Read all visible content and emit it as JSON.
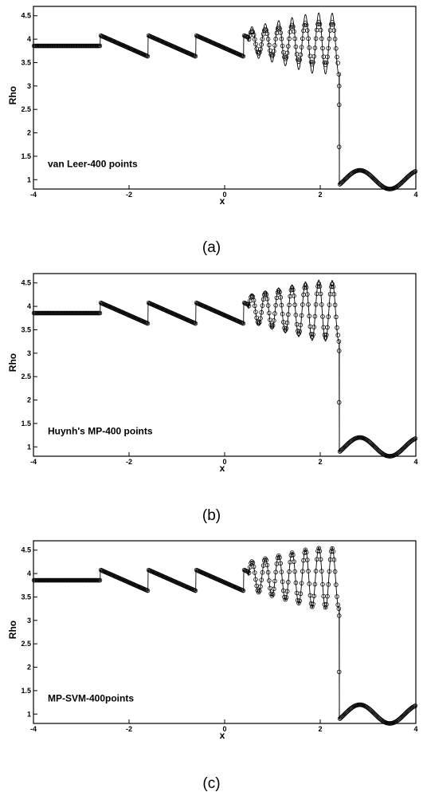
{
  "chart_data": [
    {
      "type": "line",
      "caption": "(a)",
      "annotation": "van Leer-400 points",
      "xlabel": "x",
      "ylabel": "Rho",
      "xlim": [
        -4,
        4
      ],
      "ylim": [
        0.8,
        4.7
      ],
      "x_ticks": [
        -4,
        -2,
        0,
        2,
        4
      ],
      "y_ticks": [
        1,
        1.5,
        2,
        2.5,
        3,
        3.5,
        4,
        4.5
      ],
      "series": [
        {
          "style": "line",
          "role": "reference solution"
        },
        {
          "style": "markers",
          "role": "numerical solution",
          "smoothing": 0.7,
          "shock_points": [
            3.0,
            2.6,
            1.7
          ]
        }
      ]
    },
    {
      "type": "line",
      "caption": "(b)",
      "annotation": "Huynh's MP-400 points",
      "xlabel": "x",
      "ylabel": "Rho",
      "xlim": [
        -4,
        4
      ],
      "ylim": [
        0.8,
        4.7
      ],
      "x_ticks": [
        -4,
        -2,
        0,
        2,
        4
      ],
      "y_ticks": [
        1,
        1.5,
        2,
        2.5,
        3,
        3.5,
        4,
        4.5
      ],
      "series": [
        {
          "style": "line",
          "role": "reference solution"
        },
        {
          "style": "markers",
          "role": "numerical solution",
          "smoothing": 0.88,
          "shock_points": [
            3.05,
            1.95
          ]
        }
      ]
    },
    {
      "type": "line",
      "caption": "(c)",
      "annotation": "MP-SVM-400points",
      "xlabel": "x",
      "ylabel": "Rho",
      "xlim": [
        -4,
        4
      ],
      "ylim": [
        0.8,
        4.7
      ],
      "x_ticks": [
        -4,
        -2,
        0,
        2,
        4
      ],
      "y_ticks": [
        1,
        1.5,
        2,
        2.5,
        3,
        3.5,
        4,
        4.5
      ],
      "series": [
        {
          "style": "line",
          "role": "reference solution"
        },
        {
          "style": "markers",
          "role": "numerical solution",
          "smoothing": 0.97,
          "shock_points": [
            3.1,
            1.9
          ]
        }
      ]
    }
  ]
}
